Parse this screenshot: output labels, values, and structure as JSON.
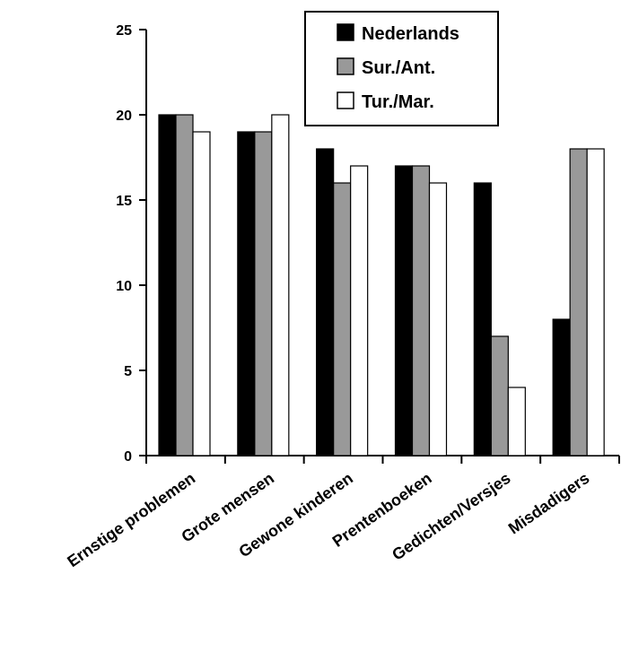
{
  "chart_data": {
    "type": "bar",
    "title": "",
    "xlabel": "",
    "ylabel": "",
    "ylim": [
      0,
      25
    ],
    "yticks": [
      0,
      5,
      10,
      15,
      20,
      25
    ],
    "grid": false,
    "legend_position": "top-right",
    "categories": [
      "Ernstige problemen",
      "Grote mensen",
      "Gewone kinderen",
      "Prentenboeken",
      "Gedichten/Versjes",
      "Misdadigers"
    ],
    "series": [
      {
        "name": "Nederlands",
        "color": "#000000",
        "values": [
          20,
          19,
          18,
          17,
          16,
          8
        ]
      },
      {
        "name": "Sur./Ant.",
        "color": "#999999",
        "values": [
          20,
          19,
          16,
          17,
          7,
          18
        ]
      },
      {
        "name": "Tur./Mar.",
        "color": "#ffffff",
        "values": [
          19,
          20,
          17,
          16,
          4,
          18
        ]
      }
    ]
  }
}
